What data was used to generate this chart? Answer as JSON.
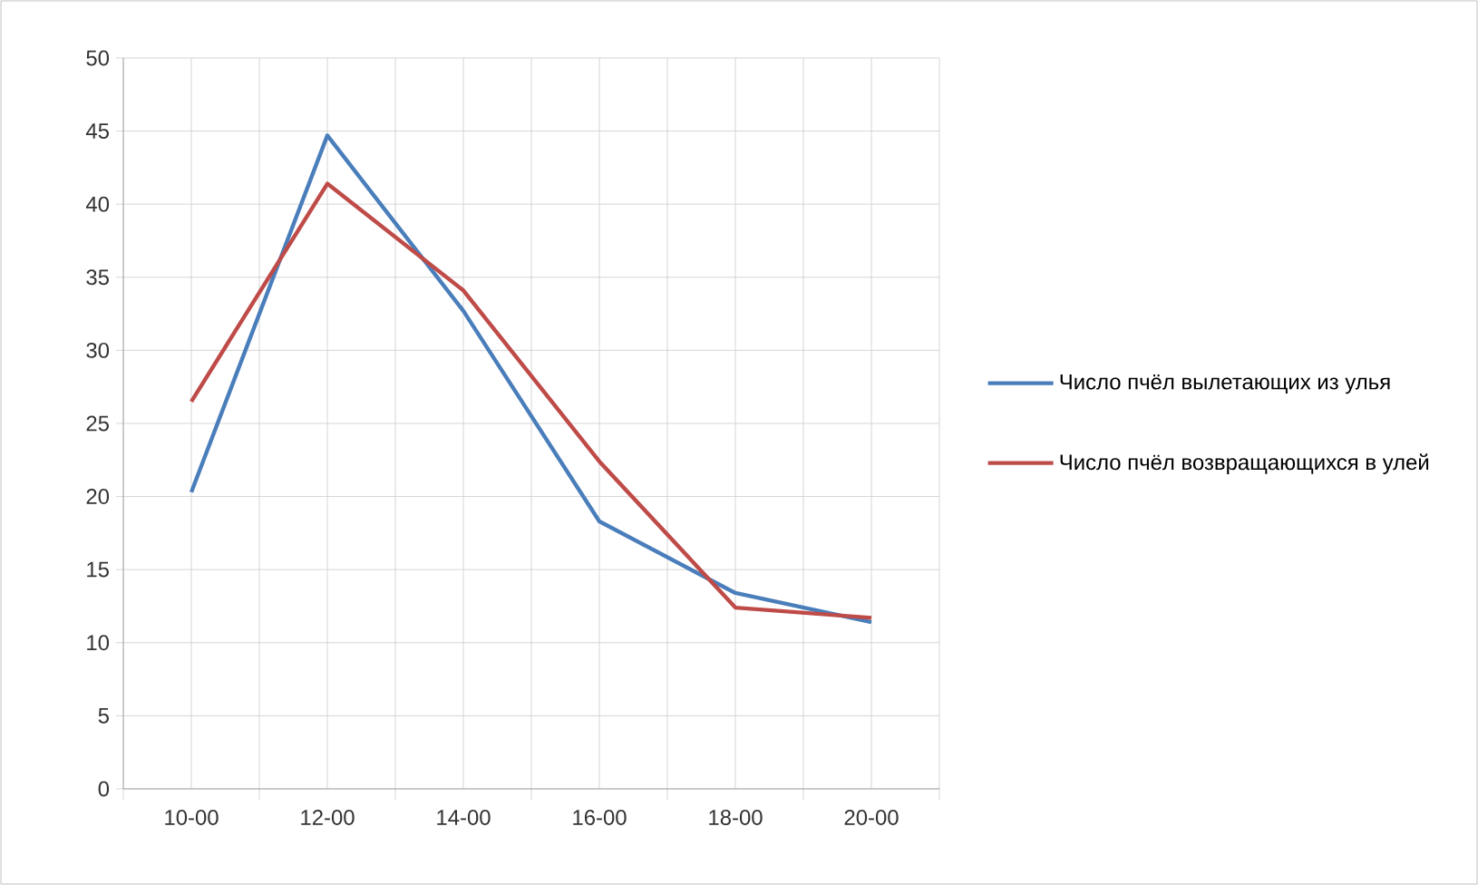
{
  "chart_data": {
    "type": "line",
    "categories": [
      "10-00",
      "12-00",
      "14-00",
      "16-00",
      "18-00",
      "20-00"
    ],
    "series": [
      {
        "name": "Число пчёл вылетающих из улья",
        "color": "#4a7ebb",
        "values": [
          20.3,
          44.7,
          32.7,
          18.3,
          13.4,
          11.4
        ]
      },
      {
        "name": "Число пчёл возвращающихся в улей",
        "color": "#be4b48",
        "values": [
          26.5,
          41.4,
          34.1,
          22.4,
          12.4,
          11.7
        ]
      }
    ],
    "ylim": [
      0,
      50
    ],
    "yticks": [
      0,
      5,
      10,
      15,
      20,
      25,
      30,
      35,
      40,
      45,
      50
    ],
    "grid": true,
    "legend": "right",
    "marker": "none",
    "line_style": "solid"
  }
}
